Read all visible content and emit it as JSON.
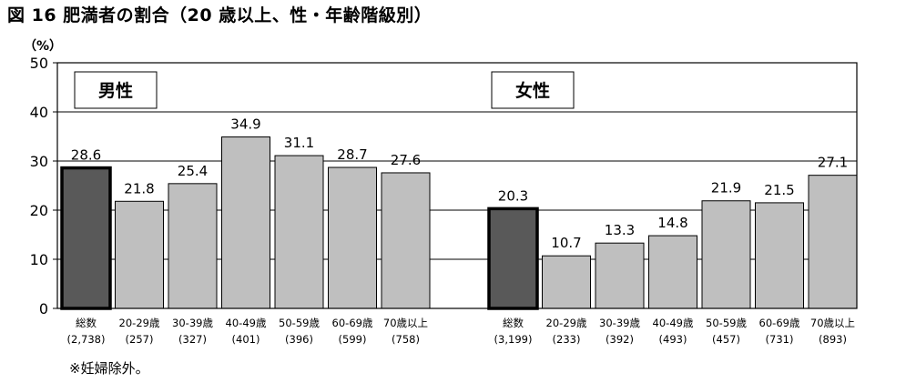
{
  "title": "図 16  肥満者の割合（20 歳以上、性・年齢階級別）",
  "unit_label": "（%）",
  "footnote": "※妊婦除外。",
  "colors": {
    "total_bar": "#595959",
    "age_bar": "#bfbfbf",
    "bar_stroke": "#000000"
  },
  "chart_data": {
    "type": "bar",
    "ylim": [
      0,
      50
    ],
    "yticks": [
      0,
      10,
      20,
      30,
      40,
      50
    ],
    "grid": true,
    "groups": [
      {
        "label": "男性",
        "categories": [
          "総数",
          "20-29歳",
          "30-39歳",
          "40-49歳",
          "50-59歳",
          "60-69歳",
          "70歳以上"
        ],
        "counts": [
          "(2,738)",
          "(257)",
          "(327)",
          "(401)",
          "(396)",
          "(599)",
          "(758)"
        ],
        "values": [
          28.6,
          21.8,
          25.4,
          34.9,
          31.1,
          28.7,
          27.6
        ]
      },
      {
        "label": "女性",
        "categories": [
          "総数",
          "20-29歳",
          "30-39歳",
          "40-49歳",
          "50-59歳",
          "60-69歳",
          "70歳以上"
        ],
        "counts": [
          "(3,199)",
          "(233)",
          "(392)",
          "(493)",
          "(457)",
          "(731)",
          "(893)"
        ],
        "values": [
          20.3,
          10.7,
          13.3,
          14.8,
          21.9,
          21.5,
          27.1
        ]
      }
    ]
  }
}
